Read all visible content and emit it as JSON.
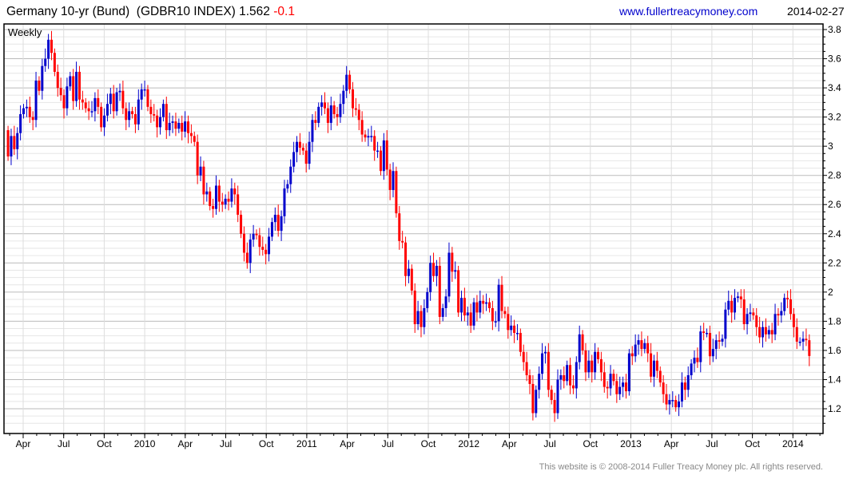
{
  "header": {
    "title": "Germany 10-yr (Bund)  (GDBR10 INDEX) 1.562",
    "change": "-0.1",
    "website": "www.fullertreacymoney.com",
    "date": "2014-02-27"
  },
  "footer": "This website is © 2008-2014 Fuller Treacy Money plc. All rights reserved.",
  "colors": {
    "up": "#0000cc",
    "down": "#ff0000",
    "label": "#0000cc"
  },
  "chart_data": {
    "type": "candlestick",
    "title": "Germany 10-yr (Bund) (GDBR10 INDEX)",
    "period_label": "Weekly",
    "last": 1.562,
    "first_open": 3.11,
    "wick_note": "open = previous close; high/low approximated",
    "ylim": [
      1.05,
      3.84
    ],
    "yticks": [
      "3.8",
      "3.6",
      "3.4",
      "3.2",
      "3",
      "2.8",
      "2.6",
      "2.4",
      "2.2",
      "2",
      "1.8",
      "1.6",
      "1.4",
      "1.2"
    ],
    "x_start_month": 1.88,
    "weeks_per_year": 52.18,
    "xticks": [
      {
        "label": "Apr",
        "month": 3
      },
      {
        "label": "Jul",
        "month": 6
      },
      {
        "label": "Oct",
        "month": 9
      },
      {
        "label": "2010",
        "month": 12
      },
      {
        "label": "Apr",
        "month": 15
      },
      {
        "label": "Jul",
        "month": 18
      },
      {
        "label": "Oct",
        "month": 21
      },
      {
        "label": "2011",
        "month": 24
      },
      {
        "label": "Apr",
        "month": 27
      },
      {
        "label": "Jul",
        "month": 30
      },
      {
        "label": "Oct",
        "month": 33
      },
      {
        "label": "2012",
        "month": 36
      },
      {
        "label": "Apr",
        "month": 39
      },
      {
        "label": "Jul",
        "month": 42
      },
      {
        "label": "Oct",
        "month": 45
      },
      {
        "label": "2013",
        "month": 48
      },
      {
        "label": "Apr",
        "month": 51
      },
      {
        "label": "Jul",
        "month": 54
      },
      {
        "label": "Oct",
        "month": 57
      },
      {
        "label": "2014",
        "month": 60
      }
    ],
    "close": [
      2.93,
      3.07,
      2.98,
      3.09,
      3.22,
      3.26,
      3.27,
      3.2,
      3.18,
      3.45,
      3.38,
      3.55,
      3.6,
      3.73,
      3.64,
      3.51,
      3.4,
      3.35,
      3.26,
      3.41,
      3.48,
      3.31,
      3.51,
      3.32,
      3.3,
      3.26,
      3.24,
      3.24,
      3.33,
      3.27,
      3.13,
      3.21,
      3.29,
      3.36,
      3.24,
      3.37,
      3.38,
      3.26,
      3.18,
      3.24,
      3.22,
      3.15,
      3.32,
      3.39,
      3.39,
      3.27,
      3.22,
      3.21,
      3.13,
      3.2,
      3.29,
      3.11,
      3.16,
      3.17,
      3.12,
      3.16,
      3.1,
      3.17,
      3.09,
      3.07,
      3.03,
      2.8,
      2.86,
      2.67,
      2.69,
      2.59,
      2.57,
      2.73,
      2.62,
      2.6,
      2.64,
      2.62,
      2.71,
      2.67,
      2.53,
      2.4,
      2.27,
      2.2,
      2.36,
      2.4,
      2.39,
      2.31,
      2.29,
      2.26,
      2.38,
      2.48,
      2.53,
      2.42,
      2.52,
      2.71,
      2.74,
      2.86,
      2.96,
      3.03,
      2.99,
      2.97,
      2.88,
      3.03,
      3.18,
      3.16,
      3.27,
      3.3,
      3.26,
      3.16,
      3.28,
      3.22,
      3.2,
      3.29,
      3.38,
      3.49,
      3.39,
      3.26,
      3.25,
      3.18,
      3.08,
      3.06,
      3.07,
      3.07,
      2.97,
      2.97,
      2.83,
      3.04,
      2.84,
      2.7,
      2.83,
      2.54,
      2.35,
      2.34,
      2.11,
      2.16,
      2.01,
      1.78,
      1.87,
      1.76,
      1.89,
      2.0,
      2.2,
      2.11,
      2.18,
      1.83,
      1.89,
      1.97,
      2.27,
      2.14,
      2.15,
      1.86,
      1.96,
      1.84,
      1.86,
      1.77,
      1.93,
      1.86,
      1.94,
      1.92,
      1.93,
      1.89,
      1.8,
      1.8,
      2.05,
      1.87,
      1.85,
      1.74,
      1.77,
      1.72,
      1.72,
      1.59,
      1.52,
      1.43,
      1.37,
      1.17,
      1.33,
      1.44,
      1.58,
      1.59,
      1.33,
      1.26,
      1.17,
      1.4,
      1.43,
      1.39,
      1.5,
      1.36,
      1.34,
      1.52,
      1.71,
      1.6,
      1.45,
      1.53,
      1.45,
      1.59,
      1.54,
      1.45,
      1.35,
      1.34,
      1.44,
      1.39,
      1.3,
      1.35,
      1.38,
      1.32,
      1.58,
      1.56,
      1.64,
      1.67,
      1.61,
      1.65,
      1.58,
      1.42,
      1.53,
      1.46,
      1.38,
      1.3,
      1.23,
      1.26,
      1.26,
      1.21,
      1.25,
      1.38,
      1.33,
      1.43,
      1.51,
      1.55,
      1.52,
      1.73,
      1.72,
      1.72,
      1.56,
      1.61,
      1.67,
      1.66,
      1.68,
      1.88,
      1.94,
      1.86,
      1.96,
      1.97,
      1.95,
      1.78,
      1.85,
      1.86,
      1.84,
      1.76,
      1.69,
      1.76,
      1.71,
      1.74,
      1.71,
      1.85,
      1.84,
      1.87,
      1.96,
      1.95,
      1.85,
      1.76,
      1.66,
      1.66,
      1.68,
      1.67,
      1.562
    ]
  }
}
